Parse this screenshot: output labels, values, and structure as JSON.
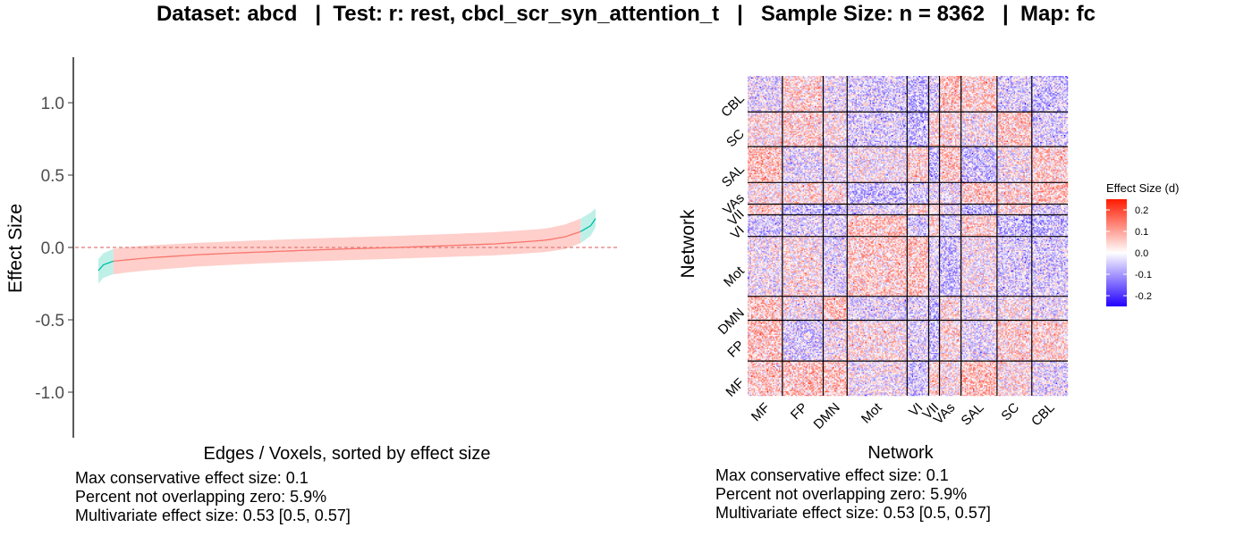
{
  "title": "Dataset: abcd   |  Test: r: rest, cbcl_scr_syn_attention_t   |   Sample Size: n = 8362   |  Map: fc",
  "colors": {
    "ci_main": "#f8766d",
    "ci_main_fill": "#ffcfcb",
    "ci_tail": "#00bfa4",
    "ci_tail_fill": "#bff0e8",
    "zero_line": "#e07a78",
    "heat_low": "#2200ff",
    "heat_mid": "#ffffff",
    "heat_high": "#ff1a00",
    "divider": "#000000"
  },
  "left_stats": [
    "Max conservative effect size: 0.1",
    "Percent not overlapping zero: 5.9%",
    "Multivariate effect size: 0.53 [0.5, 0.57]"
  ],
  "right_stats": [
    "Max conservative effect size: 0.1",
    "Percent not overlapping zero: 5.9%",
    "Multivariate effect size: 0.53 [0.5, 0.57]"
  ],
  "chart_data": [
    {
      "type": "area",
      "xlabel": "Edges / Voxels, sorted by effect size",
      "ylabel": "Effect Size",
      "ylim": [
        -1.3,
        1.3
      ],
      "yticks": [
        1.0,
        0.5,
        0.0,
        -0.5,
        -1.0
      ],
      "ytick_labels": [
        "1.0",
        "0.5",
        "0.0",
        "-0.5",
        "-1.0"
      ],
      "reference_line": 0,
      "grid": false,
      "x": [
        0,
        0.01,
        0.03,
        0.06,
        0.1,
        0.2,
        0.3,
        0.4,
        0.5,
        0.6,
        0.7,
        0.8,
        0.9,
        0.94,
        0.97,
        0.99,
        1.0
      ],
      "estimate": [
        -0.16,
        -0.12,
        -0.095,
        -0.085,
        -0.072,
        -0.05,
        -0.035,
        -0.022,
        -0.01,
        0.0,
        0.012,
        0.025,
        0.05,
        0.075,
        0.11,
        0.15,
        0.2
      ],
      "lower": [
        -0.25,
        -0.21,
        -0.185,
        -0.172,
        -0.158,
        -0.132,
        -0.114,
        -0.1,
        -0.088,
        -0.078,
        -0.066,
        -0.054,
        -0.032,
        -0.01,
        0.03,
        0.08,
        0.14
      ],
      "upper": [
        -0.08,
        -0.04,
        -0.01,
        0.002,
        0.014,
        0.032,
        0.046,
        0.058,
        0.07,
        0.08,
        0.092,
        0.106,
        0.13,
        0.16,
        0.2,
        0.24,
        0.27
      ],
      "tail_fraction_left": 0.03,
      "tail_fraction_right": 0.97
    },
    {
      "type": "heatmap",
      "xlabel": "Network",
      "ylabel": "Network",
      "networks": [
        "MF",
        "FP",
        "DMN",
        "Mot",
        "VI",
        "VII",
        "VAs",
        "SAL",
        "SC",
        "CBL"
      ],
      "network_sizes": [
        29,
        34,
        20,
        50,
        18,
        9,
        18,
        30,
        29,
        30
      ],
      "legend_title": "Effect Size (d)",
      "legend_ticks": [
        0.2,
        0.1,
        0.0,
        -0.1,
        -0.2
      ],
      "legend_tick_labels": [
        "0.2",
        "0.1",
        "0.0",
        "-0.1",
        "-0.2"
      ],
      "value_range": [
        -0.25,
        0.25
      ]
    }
  ]
}
